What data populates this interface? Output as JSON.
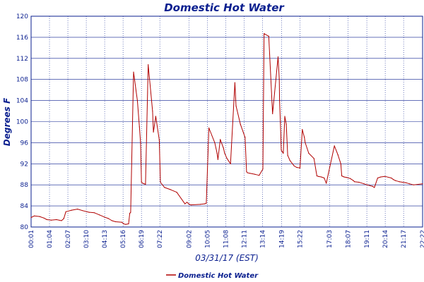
{
  "chart_data": {
    "type": "line",
    "title": "Domestic Hot Water",
    "xlabel": "03/31/17 (EST)",
    "ylabel": "Degrees F",
    "ylim": [
      80,
      120
    ],
    "yticks": [
      80,
      84,
      88,
      92,
      96,
      100,
      104,
      108,
      112,
      116,
      120
    ],
    "grid": true,
    "line_color": "#b00000",
    "axis_color": "#0a1f8f",
    "x_range_minutes": [
      1,
      1342
    ],
    "xticks": [
      {
        "label": "00:01",
        "minute": 1
      },
      {
        "label": "01:04",
        "minute": 64
      },
      {
        "label": "02:07",
        "minute": 127
      },
      {
        "label": "03:10",
        "minute": 190
      },
      {
        "label": "04:13",
        "minute": 253
      },
      {
        "label": "05:16",
        "minute": 316
      },
      {
        "label": "06:19",
        "minute": 379
      },
      {
        "label": "07:22",
        "minute": 442
      },
      {
        "label": "09:02",
        "minute": 542
      },
      {
        "label": "10:05",
        "minute": 605
      },
      {
        "label": "11:08",
        "minute": 668
      },
      {
        "label": "12:11",
        "minute": 731
      },
      {
        "label": "13:14",
        "minute": 794
      },
      {
        "label": "14:19",
        "minute": 859
      },
      {
        "label": "15:22",
        "minute": 922
      },
      {
        "label": "17:03",
        "minute": 1023
      },
      {
        "label": "18:07",
        "minute": 1087
      },
      {
        "label": "19:11",
        "minute": 1151
      },
      {
        "label": "20:14",
        "minute": 1214
      },
      {
        "label": "21:17",
        "minute": 1277
      },
      {
        "label": "22:22",
        "minute": 1342
      }
    ],
    "legend": {
      "label": "Domestic Hot Water",
      "position": "bottom-center"
    },
    "series": [
      {
        "name": "Domestic Hot Water",
        "x": [
          1,
          12,
          30,
          45,
          55,
          70,
          88,
          105,
          113,
          120,
          140,
          160,
          178,
          200,
          218,
          235,
          252,
          266,
          278,
          290,
          312,
          318,
          325,
          335,
          339,
          342,
          352,
          365,
          372,
          376,
          379,
          384,
          393,
          402,
          417,
          420,
          428,
          440,
          444,
          458,
          478,
          500,
          528,
          535,
          543,
          549,
          580,
          595,
          601,
          610,
          630,
          638,
          641,
          649,
          660,
          664,
          672,
          684,
          699,
          703,
          718,
          734,
          739,
          742,
          750,
          768,
          782,
          795,
          799,
          815,
          828,
          847,
          851,
          852,
          855,
          858,
          861,
          865,
          870,
          875,
          880,
          888,
          902,
          911,
          922,
          930,
          937,
          940,
          952,
          970,
          980,
          985,
          995,
          1005,
          1012,
          1040,
          1052,
          1062,
          1065,
          1073,
          1082,
          1094,
          1105,
          1109,
          1124,
          1141,
          1152,
          1171,
          1177,
          1180,
          1188,
          1199,
          1213,
          1235,
          1242,
          1249,
          1262,
          1285,
          1297,
          1311,
          1342
        ],
        "values": [
          81.8,
          82.1,
          82.0,
          81.7,
          81.4,
          81.3,
          81.4,
          81.2,
          81.6,
          82.9,
          83.2,
          83.4,
          83.1,
          82.8,
          82.7,
          82.3,
          81.9,
          81.6,
          81.2,
          81.0,
          80.9,
          80.6,
          80.5,
          80.6,
          82.6,
          82.8,
          109.4,
          104.0,
          99.0,
          96.0,
          88.5,
          88.3,
          88.1,
          110.8,
          102.0,
          98.0,
          101.0,
          96.5,
          88.5,
          87.5,
          87.1,
          86.6,
          84.4,
          84.7,
          84.3,
          84.2,
          84.3,
          84.4,
          84.5,
          98.8,
          96.0,
          94.0,
          92.8,
          96.6,
          95.0,
          94.0,
          93.0,
          92.0,
          107.4,
          103.0,
          99.5,
          97.0,
          90.5,
          90.3,
          90.2,
          90.0,
          89.8,
          91.0,
          116.7,
          116.2,
          101.5,
          112.3,
          108.0,
          104.0,
          99.8,
          94.6,
          94.3,
          94.0,
          101.0,
          99.5,
          93.6,
          92.6,
          91.6,
          91.3,
          91.2,
          98.5,
          97.0,
          96.0,
          94.0,
          93.0,
          89.7,
          89.6,
          89.5,
          89.3,
          88.3,
          95.4,
          93.7,
          92.0,
          89.7,
          89.5,
          89.4,
          89.2,
          88.8,
          88.6,
          88.5,
          88.2,
          88.0,
          87.7,
          87.5,
          88.0,
          89.3,
          89.5,
          89.6,
          89.3,
          89.0,
          88.8,
          88.6,
          88.4,
          88.2,
          88.0,
          88.2
        ]
      }
    ]
  }
}
